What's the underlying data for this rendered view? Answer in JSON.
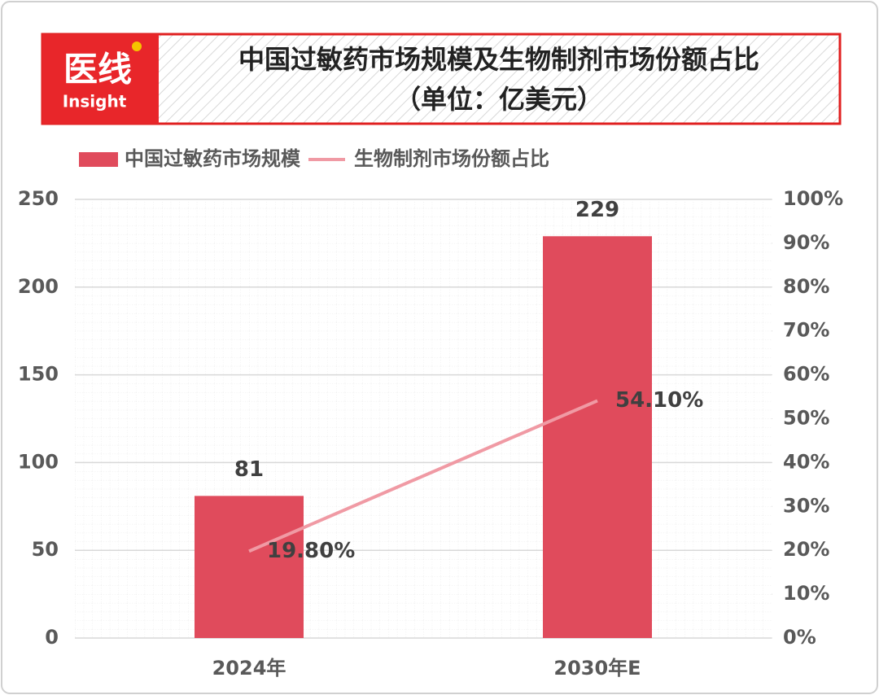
{
  "logo": {
    "main": "医线",
    "sub": "Insight"
  },
  "chart_data": {
    "type": "bar",
    "title": "中国过敏药市场规模及生物制剂市场份额占比",
    "subtitle": "（单位：亿美元）",
    "categories": [
      "2024年",
      "2030年E"
    ],
    "series": [
      {
        "name": "中国过敏药市场规模",
        "color": "#e04b5c",
        "values": [
          81,
          229
        ]
      },
      {
        "name": "生物制剂市场份额占比",
        "color": "#f09aa4",
        "type": "line",
        "axis": "y2",
        "values": [
          19.8,
          54.1
        ],
        "value_labels": [
          "19.80%",
          "54.10%"
        ]
      }
    ],
    "ylim": [
      0,
      250
    ],
    "yticks": [
      0,
      50,
      100,
      150,
      200,
      250
    ],
    "y2lim": [
      0,
      100
    ],
    "y2ticks": [
      {
        "value": 0,
        "label": "0%"
      },
      {
        "value": 10,
        "label": "10%"
      },
      {
        "value": 20,
        "label": "20%"
      },
      {
        "value": 30,
        "label": "30%"
      },
      {
        "value": 40,
        "label": "40%"
      },
      {
        "value": 50,
        "label": "50%"
      },
      {
        "value": 60,
        "label": "60%"
      },
      {
        "value": 70,
        "label": "70%"
      },
      {
        "value": 80,
        "label": "80%"
      },
      {
        "value": 90,
        "label": "90%"
      },
      {
        "value": 100,
        "label": "100%"
      }
    ],
    "grid": true,
    "legend": "top"
  }
}
